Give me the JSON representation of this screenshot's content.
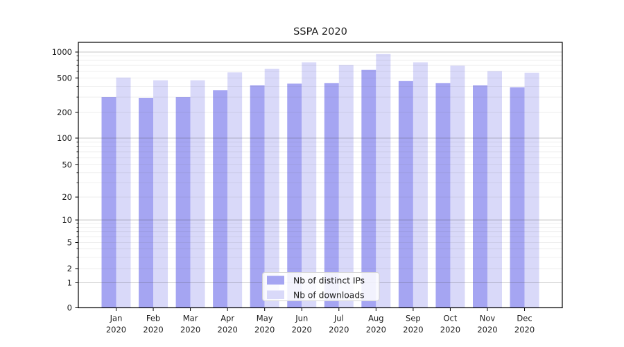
{
  "chart_data": {
    "type": "bar",
    "title": "SSPA 2020",
    "xlabel": "",
    "ylabel": "",
    "yscale": "symlog",
    "grid": true,
    "ylim": [
      0,
      1000
    ],
    "ytick_labels": [
      "0",
      "1",
      "2",
      "5",
      "10",
      "20",
      "50",
      "100",
      "200",
      "500",
      "1000"
    ],
    "ytick_values": [
      0,
      1,
      2,
      5,
      10,
      20,
      50,
      100,
      200,
      500,
      1000
    ],
    "categories": [
      "Jan",
      "Feb",
      "Mar",
      "Apr",
      "May",
      "Jun",
      "Jul",
      "Aug",
      "Sep",
      "Oct",
      "Nov",
      "Dec"
    ],
    "xtick_year_line": "2020",
    "legend_position": "bottom-center",
    "series": [
      {
        "name": "Nb of distinct IPs",
        "color": "#a5a5f2",
        "values": [
          300,
          295,
          300,
          360,
          410,
          430,
          435,
          620,
          460,
          435,
          410,
          390
        ]
      },
      {
        "name": "Nb of downloads",
        "color": "#d9d9f9",
        "values": [
          505,
          470,
          470,
          580,
          640,
          760,
          705,
          950,
          760,
          695,
          600,
          575
        ]
      }
    ]
  },
  "style_colors": {
    "major_gridline": "#c6c6c6",
    "minor_gridline": "#ebebeb",
    "axis_spine": "#000000",
    "legend_border": "#d2d2d2",
    "legend_fill": "rgba(255,255,255,0.85)"
  }
}
